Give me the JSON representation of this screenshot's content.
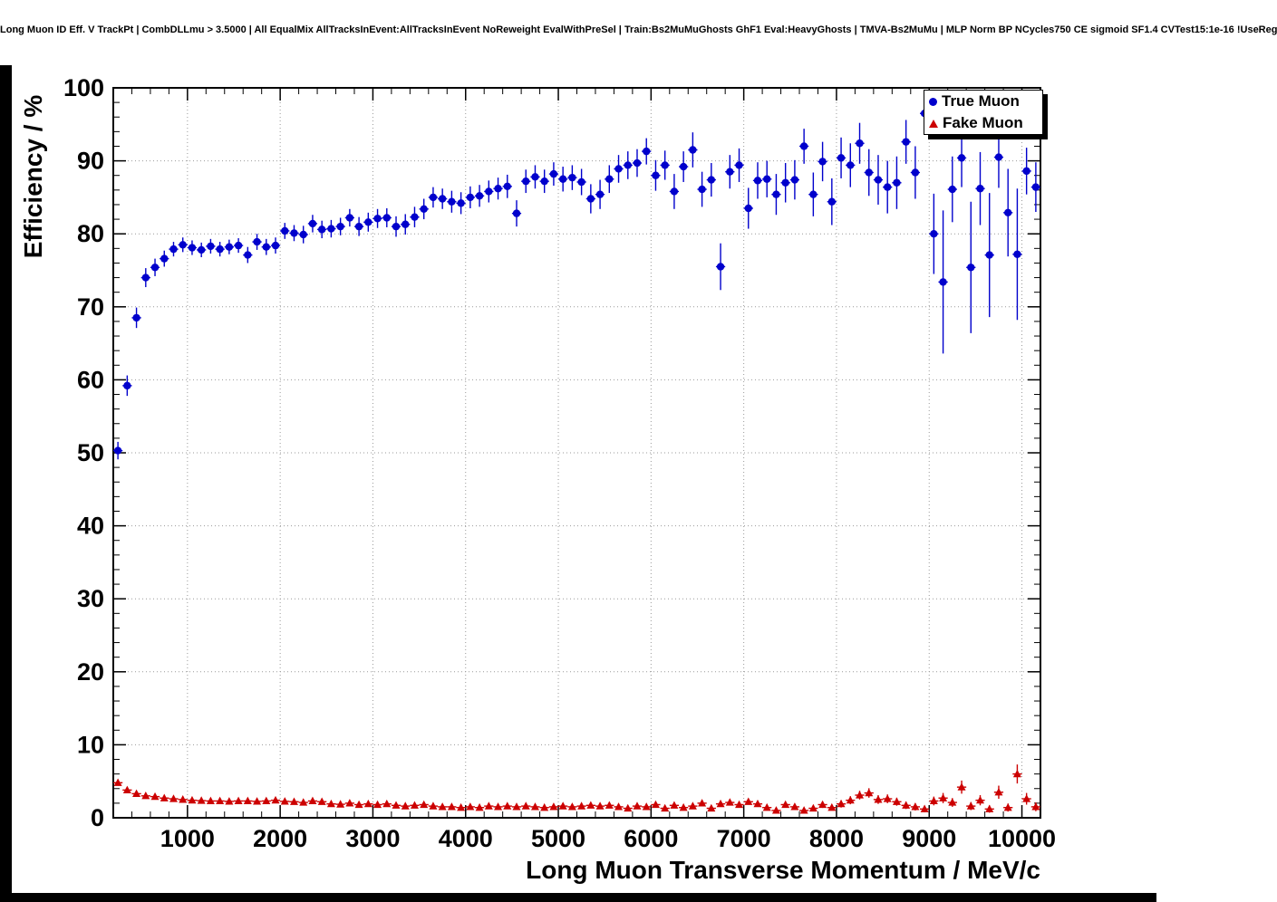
{
  "title": "Long Muon ID Eff. V TrackPt | CombDLLmu > 3.5000 | All EqualMix AllTracksInEvent:AllTracksInEvent NoReweight EvalWithPreSel | Train:Bs2MuMuGhosts GhF1 Eval:HeavyGhosts | TMVA-Bs2MuMu | MLP Norm BP NCycles750 CE sigmoid SF1.4 CVTest15:1e-16 !UseReg",
  "colors": {
    "true_muon": "#0000cc",
    "fake_muon": "#cc0000",
    "grid": "#999999",
    "frame": "#000000"
  },
  "chart_data": {
    "type": "scatter",
    "title": "Long Muon ID Eff. V TrackPt | CombDLLmu > 3.5000 | All EqualMix AllTracksInEvent:AllTracksInEvent NoReweight EvalWithPreSel | Train:Bs2MuMuGhosts GhF1 Eval:HeavyGhosts | TMVA-Bs2MuMu | MLP Norm BP NCycles750 CE sigmoid SF1.4 CVTest15:1e-16 !UseReg",
    "xlabel": "Long Muon Transverse Momentum / MeV/c",
    "ylabel": "Efficiency / %",
    "xlim": [
      200,
      10200
    ],
    "ylim": [
      0,
      100
    ],
    "x_ticks": [
      1000,
      2000,
      3000,
      4000,
      5000,
      6000,
      7000,
      8000,
      9000,
      10000
    ],
    "y_ticks": [
      0,
      10,
      20,
      30,
      40,
      50,
      60,
      70,
      80,
      90,
      100
    ],
    "x_minor_step": 200,
    "y_minor_step": 2,
    "grid": "dotted",
    "legend_position": "top-right",
    "bin_half_width": 50,
    "series": [
      {
        "name": "True Muon",
        "marker": "circle",
        "color": "#0000cc",
        "points": [
          [
            250,
            50.3,
            1.2
          ],
          [
            350,
            59.2,
            1.4
          ],
          [
            450,
            68.5,
            1.4
          ],
          [
            550,
            74.0,
            1.3
          ],
          [
            650,
            75.4,
            1.2
          ],
          [
            750,
            76.6,
            1.1
          ],
          [
            850,
            77.9,
            1.0
          ],
          [
            950,
            78.5,
            1.0
          ],
          [
            1050,
            78.1,
            1.0
          ],
          [
            1150,
            77.8,
            1.0
          ],
          [
            1250,
            78.3,
            1.0
          ],
          [
            1350,
            77.9,
            1.0
          ],
          [
            1450,
            78.2,
            1.0
          ],
          [
            1550,
            78.4,
            1.0
          ],
          [
            1650,
            77.1,
            1.1
          ],
          [
            1750,
            78.9,
            1.1
          ],
          [
            1850,
            78.2,
            1.1
          ],
          [
            1950,
            78.4,
            1.1
          ],
          [
            2050,
            80.4,
            1.1
          ],
          [
            2150,
            80.1,
            1.1
          ],
          [
            2250,
            79.9,
            1.2
          ],
          [
            2350,
            81.4,
            1.2
          ],
          [
            2450,
            80.6,
            1.2
          ],
          [
            2550,
            80.7,
            1.2
          ],
          [
            2650,
            81.0,
            1.2
          ],
          [
            2750,
            82.2,
            1.2
          ],
          [
            2850,
            81.0,
            1.3
          ],
          [
            2950,
            81.6,
            1.3
          ],
          [
            3050,
            82.1,
            1.3
          ],
          [
            3150,
            82.2,
            1.3
          ],
          [
            3250,
            81.0,
            1.4
          ],
          [
            3350,
            81.3,
            1.4
          ],
          [
            3450,
            82.3,
            1.4
          ],
          [
            3550,
            83.4,
            1.4
          ],
          [
            3650,
            85.0,
            1.4
          ],
          [
            3750,
            84.8,
            1.4
          ],
          [
            3850,
            84.4,
            1.5
          ],
          [
            3950,
            84.2,
            1.5
          ],
          [
            4050,
            85.0,
            1.5
          ],
          [
            4150,
            85.2,
            1.5
          ],
          [
            4250,
            85.8,
            1.5
          ],
          [
            4350,
            86.2,
            1.5
          ],
          [
            4450,
            86.5,
            1.6
          ],
          [
            4550,
            82.8,
            1.8
          ],
          [
            4650,
            87.2,
            1.6
          ],
          [
            4750,
            87.8,
            1.6
          ],
          [
            4850,
            87.2,
            1.6
          ],
          [
            4950,
            88.2,
            1.6
          ],
          [
            5050,
            87.5,
            1.7
          ],
          [
            5150,
            87.7,
            1.7
          ],
          [
            5250,
            87.1,
            1.8
          ],
          [
            5350,
            84.8,
            2.0
          ],
          [
            5450,
            85.4,
            2.0
          ],
          [
            5550,
            87.5,
            1.9
          ],
          [
            5650,
            88.9,
            1.9
          ],
          [
            5750,
            89.4,
            1.9
          ],
          [
            5850,
            89.7,
            1.9
          ],
          [
            5950,
            91.3,
            1.8
          ],
          [
            6050,
            88.0,
            2.1
          ],
          [
            6150,
            89.4,
            2.0
          ],
          [
            6250,
            85.8,
            2.4
          ],
          [
            6350,
            89.2,
            2.1
          ],
          [
            6450,
            91.5,
            2.4
          ],
          [
            6550,
            86.1,
            2.4
          ],
          [
            6650,
            87.4,
            2.3
          ],
          [
            6750,
            75.5,
            3.2
          ],
          [
            6850,
            88.5,
            2.3
          ],
          [
            6950,
            89.4,
            2.3
          ],
          [
            7050,
            83.5,
            2.8
          ],
          [
            7150,
            87.3,
            2.5
          ],
          [
            7250,
            87.5,
            2.5
          ],
          [
            7350,
            85.4,
            2.8
          ],
          [
            7450,
            87.0,
            2.7
          ],
          [
            7550,
            87.4,
            2.7
          ],
          [
            7650,
            92.0,
            2.4
          ],
          [
            7750,
            85.4,
            3.0
          ],
          [
            7850,
            89.9,
            2.7
          ],
          [
            7950,
            84.4,
            3.2
          ],
          [
            8050,
            90.4,
            2.8
          ],
          [
            8150,
            89.4,
            3.0
          ],
          [
            8250,
            92.4,
            2.8
          ],
          [
            8350,
            88.4,
            3.2
          ],
          [
            8450,
            87.4,
            3.4
          ],
          [
            8550,
            86.4,
            3.6
          ],
          [
            8650,
            87.0,
            3.6
          ],
          [
            8750,
            92.6,
            3.0
          ],
          [
            8850,
            88.4,
            3.6
          ],
          [
            8950,
            96.5,
            2.0
          ],
          [
            9050,
            80.0,
            5.5
          ],
          [
            9150,
            73.4,
            9.8
          ],
          [
            9250,
            86.1,
            4.5
          ],
          [
            9350,
            90.4,
            4.0
          ],
          [
            9450,
            75.4,
            9.0
          ],
          [
            9550,
            86.2,
            5.0
          ],
          [
            9650,
            77.1,
            8.5
          ],
          [
            9750,
            90.5,
            4.2
          ],
          [
            9850,
            82.9,
            6.0
          ],
          [
            9950,
            77.2,
            9.0
          ],
          [
            10050,
            88.6,
            3.2
          ],
          [
            10150,
            86.4,
            3.4
          ]
        ]
      },
      {
        "name": "Fake Muon",
        "marker": "triangle",
        "color": "#cc0000",
        "points": [
          [
            250,
            4.8,
            0.4
          ],
          [
            350,
            3.8,
            0.3
          ],
          [
            450,
            3.3,
            0.3
          ],
          [
            550,
            3.0,
            0.3
          ],
          [
            650,
            2.9,
            0.25
          ],
          [
            750,
            2.7,
            0.2
          ],
          [
            850,
            2.6,
            0.2
          ],
          [
            950,
            2.5,
            0.2
          ],
          [
            1050,
            2.4,
            0.2
          ],
          [
            1150,
            2.35,
            0.2
          ],
          [
            1250,
            2.3,
            0.2
          ],
          [
            1350,
            2.3,
            0.2
          ],
          [
            1450,
            2.25,
            0.2
          ],
          [
            1550,
            2.3,
            0.2
          ],
          [
            1650,
            2.3,
            0.2
          ],
          [
            1750,
            2.25,
            0.2
          ],
          [
            1850,
            2.3,
            0.2
          ],
          [
            1950,
            2.4,
            0.2
          ],
          [
            2050,
            2.25,
            0.2
          ],
          [
            2150,
            2.2,
            0.2
          ],
          [
            2250,
            2.1,
            0.2
          ],
          [
            2350,
            2.3,
            0.2
          ],
          [
            2450,
            2.2,
            0.2
          ],
          [
            2550,
            1.9,
            0.2
          ],
          [
            2650,
            1.85,
            0.2
          ],
          [
            2750,
            2.0,
            0.2
          ],
          [
            2850,
            1.8,
            0.2
          ],
          [
            2950,
            1.9,
            0.2
          ],
          [
            3050,
            1.8,
            0.2
          ],
          [
            3150,
            1.9,
            0.2
          ],
          [
            3250,
            1.7,
            0.2
          ],
          [
            3350,
            1.6,
            0.2
          ],
          [
            3450,
            1.7,
            0.2
          ],
          [
            3550,
            1.8,
            0.2
          ],
          [
            3650,
            1.6,
            0.2
          ],
          [
            3750,
            1.5,
            0.2
          ],
          [
            3850,
            1.5,
            0.2
          ],
          [
            3950,
            1.4,
            0.2
          ],
          [
            4050,
            1.5,
            0.2
          ],
          [
            4150,
            1.4,
            0.2
          ],
          [
            4250,
            1.6,
            0.2
          ],
          [
            4350,
            1.5,
            0.2
          ],
          [
            4450,
            1.6,
            0.2
          ],
          [
            4550,
            1.5,
            0.2
          ],
          [
            4650,
            1.6,
            0.2
          ],
          [
            4750,
            1.5,
            0.2
          ],
          [
            4850,
            1.4,
            0.2
          ],
          [
            4950,
            1.5,
            0.2
          ],
          [
            5050,
            1.6,
            0.25
          ],
          [
            5150,
            1.5,
            0.25
          ],
          [
            5250,
            1.6,
            0.25
          ],
          [
            5350,
            1.7,
            0.25
          ],
          [
            5450,
            1.6,
            0.25
          ],
          [
            5550,
            1.7,
            0.25
          ],
          [
            5650,
            1.5,
            0.25
          ],
          [
            5750,
            1.3,
            0.25
          ],
          [
            5850,
            1.6,
            0.25
          ],
          [
            5950,
            1.5,
            0.25
          ],
          [
            6050,
            1.8,
            0.3
          ],
          [
            6150,
            1.3,
            0.25
          ],
          [
            6250,
            1.7,
            0.3
          ],
          [
            6350,
            1.4,
            0.3
          ],
          [
            6450,
            1.6,
            0.3
          ],
          [
            6550,
            2.0,
            0.35
          ],
          [
            6650,
            1.3,
            0.3
          ],
          [
            6750,
            1.9,
            0.35
          ],
          [
            6850,
            2.1,
            0.4
          ],
          [
            6950,
            1.8,
            0.35
          ],
          [
            7050,
            2.2,
            0.4
          ],
          [
            7150,
            1.9,
            0.4
          ],
          [
            7250,
            1.4,
            0.35
          ],
          [
            7350,
            1.0,
            0.3
          ],
          [
            7450,
            1.8,
            0.4
          ],
          [
            7550,
            1.5,
            0.4
          ],
          [
            7650,
            1.0,
            0.3
          ],
          [
            7750,
            1.3,
            0.35
          ],
          [
            7850,
            1.8,
            0.45
          ],
          [
            7950,
            1.4,
            0.4
          ],
          [
            8050,
            1.9,
            0.5
          ],
          [
            8150,
            2.4,
            0.55
          ],
          [
            8250,
            3.1,
            0.6
          ],
          [
            8350,
            3.4,
            0.65
          ],
          [
            8450,
            2.5,
            0.6
          ],
          [
            8550,
            2.6,
            0.6
          ],
          [
            8650,
            2.2,
            0.55
          ],
          [
            8750,
            1.7,
            0.5
          ],
          [
            8850,
            1.5,
            0.5
          ],
          [
            8950,
            1.2,
            0.45
          ],
          [
            9050,
            2.3,
            0.6
          ],
          [
            9150,
            2.7,
            0.7
          ],
          [
            9250,
            2.1,
            0.6
          ],
          [
            9350,
            4.2,
            0.9
          ],
          [
            9450,
            1.6,
            0.55
          ],
          [
            9550,
            2.4,
            0.7
          ],
          [
            9650,
            1.2,
            0.5
          ],
          [
            9750,
            3.5,
            0.9
          ],
          [
            9850,
            1.4,
            0.55
          ],
          [
            9950,
            6.0,
            1.3
          ],
          [
            10050,
            2.6,
            0.8
          ],
          [
            10150,
            1.5,
            0.6
          ]
        ]
      }
    ]
  }
}
